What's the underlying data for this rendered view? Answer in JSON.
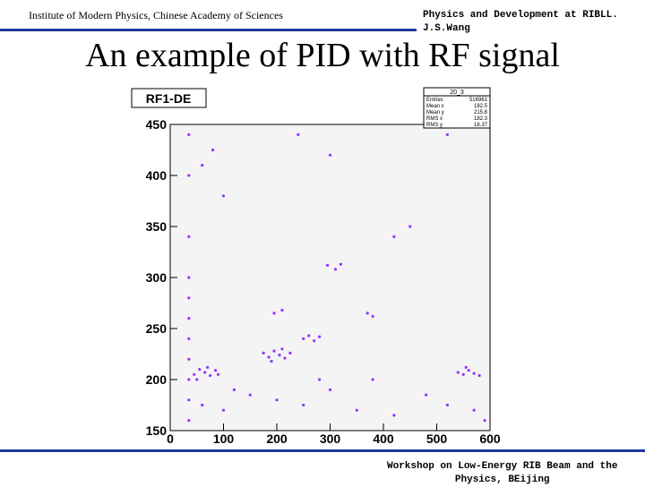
{
  "header": {
    "institute": "Institute of Modern Physics, Chinese Academy of Sciences",
    "right_lines": [
      "Physics and Development at RIBLL.",
      "J.S.Wang"
    ]
  },
  "title": "An example of PID with RF signal",
  "footer_lines": [
    "Workshop on Low-Energy RIB Beam and the",
    "Physics, BEijing"
  ],
  "chart_data": {
    "type": "scatter",
    "title": "RF1-DE",
    "color": "#9933ff",
    "stats": {
      "name": "20_3",
      "rows": [
        [
          "Entries",
          "516961"
        ],
        [
          "Mean x",
          "182.5"
        ],
        [
          "Mean y",
          "215.8"
        ],
        [
          "RMS x",
          "182.3"
        ],
        [
          "RMS y",
          "16.37"
        ]
      ]
    },
    "xlim": [
      0,
      600
    ],
    "ylim": [
      150,
      450
    ],
    "xticks": [
      0,
      100,
      200,
      300,
      400,
      500,
      600
    ],
    "yticks": [
      150,
      200,
      250,
      300,
      350,
      400,
      450
    ],
    "x": [
      35,
      35,
      35,
      35,
      35,
      35,
      35,
      35,
      35,
      35,
      35,
      45,
      55,
      65,
      75,
      85,
      50,
      70,
      90,
      175,
      185,
      195,
      205,
      215,
      225,
      190,
      210,
      250,
      260,
      270,
      280,
      195,
      210,
      295,
      310,
      320,
      370,
      380,
      420,
      540,
      550,
      560,
      570,
      580,
      555,
      60,
      100,
      150,
      200,
      250,
      300,
      350,
      420,
      480,
      520,
      570,
      590,
      120,
      280,
      380,
      60,
      80,
      100,
      240,
      450,
      520,
      300
    ],
    "y": [
      160,
      180,
      200,
      220,
      240,
      260,
      280,
      300,
      340,
      400,
      440,
      205,
      210,
      207,
      204,
      209,
      200,
      212,
      205,
      226,
      222,
      228,
      224,
      221,
      226,
      218,
      230,
      240,
      243,
      238,
      242,
      265,
      268,
      312,
      308,
      313,
      265,
      262,
      340,
      207,
      205,
      209,
      206,
      204,
      212,
      175,
      170,
      185,
      180,
      175,
      190,
      170,
      165,
      185,
      175,
      170,
      160,
      190,
      200,
      200,
      410,
      425,
      380,
      440,
      350,
      440,
      420
    ]
  }
}
